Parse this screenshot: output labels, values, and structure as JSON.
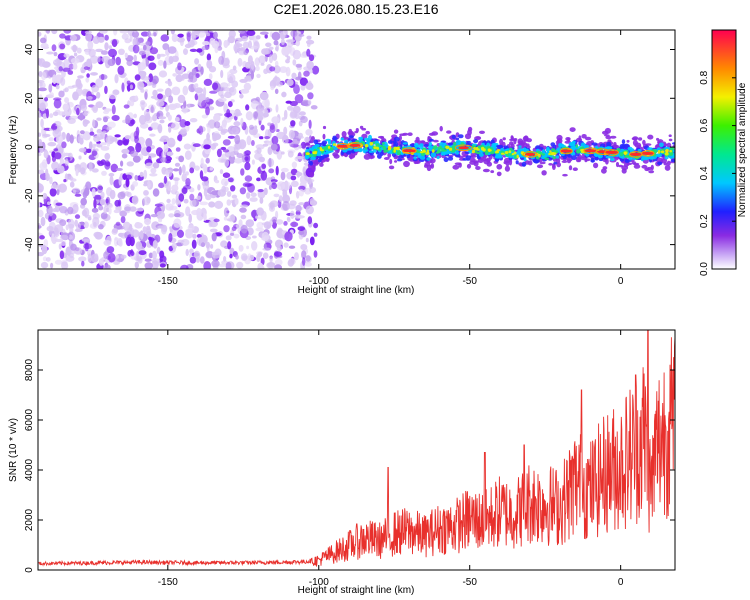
{
  "title": "C2E1.2026.080.15.23.E16",
  "colors": {
    "snr_line": "#e8302c",
    "spec_dense": "#7a1ff0",
    "spec_faint": "#d8c4f4"
  },
  "chart_data": [
    {
      "type": "heatmap",
      "name": "spectrogram",
      "xlabel": "Height of straight line (km)",
      "ylabel": "Frequency (Hz)",
      "xlim": [
        -193,
        18
      ],
      "ylim": [
        -50,
        48
      ],
      "xticks": [
        -150,
        -100,
        -50,
        0
      ],
      "yticks": [
        -40,
        -20,
        0,
        20,
        40
      ],
      "noise_region": {
        "x_from": -193,
        "x_to": -101,
        "y_from": -50,
        "y_to": 48
      },
      "signal_track": {
        "x": [
          -104,
          -95,
          -85,
          -75,
          -65,
          -55,
          -45,
          -35,
          -25,
          -15,
          -5,
          5,
          15,
          18
        ],
        "y": [
          -3,
          0,
          1,
          -1,
          -2,
          0,
          -1,
          -3,
          -3,
          -1,
          -2,
          -3,
          -2,
          -2
        ]
      },
      "colorbar": {
        "label": "Normalized spectral amplitude",
        "range": [
          0,
          1
        ],
        "ticks": [
          "0.0",
          "0.2",
          "0.4",
          "0.6",
          "0.8"
        ],
        "tick_values": [
          0,
          0.2,
          0.4,
          0.6,
          0.8
        ]
      }
    },
    {
      "type": "line",
      "name": "snr",
      "xlabel": "Height of straight line (km)",
      "ylabel": "SNR (10 * v/v)",
      "xlim": [
        -193,
        18
      ],
      "ylim": [
        0,
        9600
      ],
      "xticks": [
        -150,
        -100,
        -50,
        0
      ],
      "yticks": [
        0,
        2000,
        4000,
        6000,
        8000
      ],
      "series": [
        {
          "name": "SNR",
          "x": [
            -193,
            -180,
            -160,
            -140,
            -120,
            -105,
            -100,
            -95,
            -90,
            -85,
            -80,
            -75,
            -70,
            -65,
            -60,
            -55,
            -50,
            -45,
            -40,
            -35,
            -30,
            -25,
            -20,
            -15,
            -10,
            -5,
            0,
            5,
            8,
            10,
            12,
            15,
            18
          ],
          "y": [
            250,
            270,
            300,
            280,
            290,
            320,
            400,
            700,
            1000,
            1300,
            1200,
            1500,
            1600,
            1400,
            1700,
            1800,
            2100,
            2000,
            2400,
            2300,
            2800,
            2700,
            2600,
            3600,
            3300,
            4000,
            4300,
            5000,
            5600,
            3300,
            5100,
            5800,
            6000
          ]
        }
      ]
    }
  ]
}
